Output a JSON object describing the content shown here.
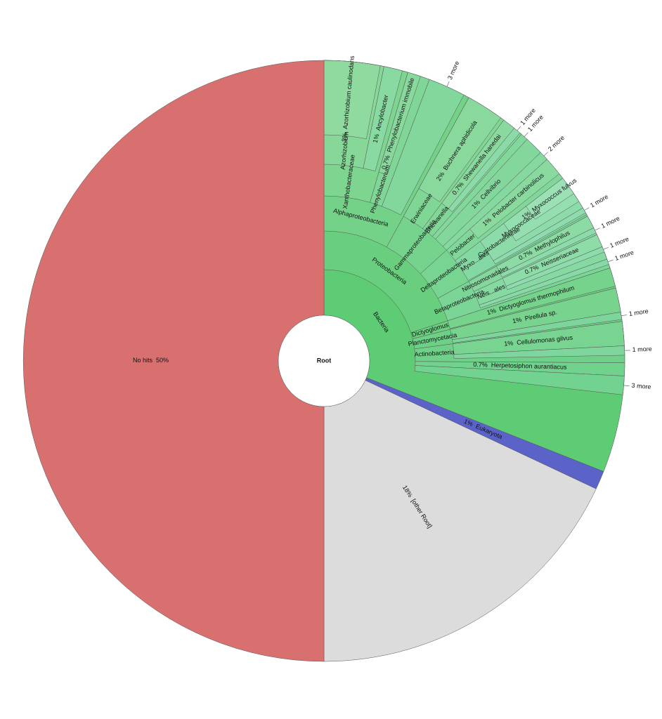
{
  "chart_data": {
    "type": "sunburst",
    "root": {
      "name": "Root",
      "value": 100,
      "children": [
        {
          "name": "Bacteria",
          "value": 31,
          "color": "#5ecb75",
          "children": [
            {
              "name": "Proteobacteria",
              "value": 20,
              "children": [
                {
                  "name": "Alphaproteobacteria",
                  "value": 8,
                  "children": [
                    {
                      "name": "Xanthobacteraceae",
                      "value": 4.5,
                      "children": [
                        {
                          "name": "Azorhizobium",
                          "value": 3.2,
                          "children": [
                            {
                              "name": "Azorhizobium caulinodans",
                              "value": 3,
                              "value_label": "3%"
                            }
                          ]
                        },
                        {
                          "name": "Ancylobacter",
                          "value": 1,
                          "value_label": "1%"
                        }
                      ]
                    },
                    {
                      "name": "Phenylobacterium",
                      "value": 1.2,
                      "children": [
                        {
                          "name": "Phenylobacterium immobile",
                          "value": 0.7,
                          "value_label": "0.7%"
                        }
                      ]
                    },
                    {
                      "name": "3 more",
                      "value": 2
                    }
                  ]
                },
                {
                  "name": "Gammaproteobacteria",
                  "value": 5.3,
                  "children": [
                    {
                      "name": "Erwiniaceae",
                      "value": 2.2,
                      "children": [
                        {
                          "name": "Buchnera aphidicola",
                          "value": 2,
                          "value_label": "2%"
                        }
                      ]
                    },
                    {
                      "name": "Shewanella",
                      "value": 1.2,
                      "children": [
                        {
                          "name": "Shewanella hanedai",
                          "value": 0.7,
                          "value_label": "0.7%"
                        },
                        {
                          "name": "1 more",
                          "value": 0.4
                        }
                      ]
                    },
                    {
                      "name": "1 more",
                      "value": 0.4
                    },
                    {
                      "name": "Cellvibrio",
                      "value": 1,
                      "value_label": "1%"
                    },
                    {
                      "name": "2 more",
                      "value": 0.5
                    }
                  ]
                },
                {
                  "name": "Deltaproteobacteria",
                  "value": 3.7,
                  "children": [
                    {
                      "name": "Pelobacter",
                      "value": 1.3,
                      "children": [
                        {
                          "name": "Pelobacter carbinolicus",
                          "value": 1,
                          "value_label": "1%"
                        }
                      ]
                    },
                    {
                      "name": "Myxo...ales",
                      "value": 2.3,
                      "children": [
                        {
                          "name": "Cystobacterineae",
                          "value": 1.9,
                          "children": [
                            {
                              "name": "Myxococcaceae",
                              "value": 1.5,
                              "children": [
                                {
                                  "name": "Myxococcus fulvus",
                                  "value": 1,
                                  "value_label": "1%"
                                }
                              ]
                            }
                          ]
                        },
                        {
                          "name": "1 more",
                          "value": 0.3
                        }
                      ]
                    }
                  ]
                },
                {
                  "name": "Betaproteobacteria",
                  "value": 3,
                  "children": [
                    {
                      "name": "Nitrosomonadales",
                      "value": 1.1,
                      "children": [
                        {
                          "name": "Methylophilus",
                          "value": 0.7,
                          "value_label": "0.7%"
                        },
                        {
                          "name": "1 more",
                          "value": 0.3
                        }
                      ]
                    },
                    {
                      "name": "Neis...ales",
                      "value": 1.4,
                      "children": [
                        {
                          "name": "Neisseriaceae",
                          "value": 0.7,
                          "value_label": "0.7%"
                        },
                        {
                          "name": "1 more",
                          "value": 0.3
                        }
                      ]
                    },
                    {
                      "name": "1 more",
                      "value": 0.3
                    }
                  ]
                }
              ]
            },
            {
              "name": "Dictyoglomus",
              "value": 1.1,
              "children": [
                {
                  "name": "Dictyoglomus thermophilum",
                  "value": 1,
                  "value_label": "1%"
                }
              ]
            },
            {
              "name": "Planctomycetacia",
              "value": 1.8,
              "children": [
                {
                  "name": "Pirellula sp.",
                  "value": 1.3,
                  "value_label": "1%"
                },
                {
                  "name": "1 more",
                  "value": 0.4
                }
              ]
            },
            {
              "name": "Actinobacteria",
              "value": 2.2,
              "children": [
                {
                  "name": "Cellulomonas gilvus",
                  "value": 1.3,
                  "value_label": "1%"
                },
                {
                  "name": "1 more",
                  "value": 0.5
                }
              ]
            },
            {
              "name": "Herpetosiphon aurantiacus",
              "value": 0.7,
              "value_label": "0.7%"
            },
            {
              "name": "3 more",
              "value": 1
            }
          ]
        },
        {
          "name": "Eukaryota",
          "value": 1,
          "value_label": "1%",
          "color": "#5b63c8"
        },
        {
          "name": "[other Root]",
          "value": 18,
          "value_label": "18%",
          "color": "#dcdcdc"
        },
        {
          "name": "No hits",
          "value": 50,
          "value_label": "50%",
          "color": "#d87070"
        }
      ]
    }
  }
}
